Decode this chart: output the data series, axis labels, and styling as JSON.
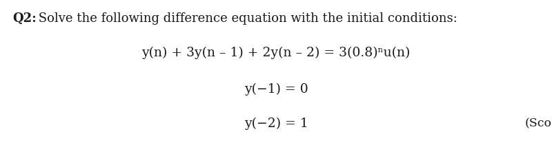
{
  "background_color": "#ffffff",
  "text_color": "#1a1a1a",
  "q2_bold": "Q2:",
  "title_rest": " Solve the following difference equation with the initial conditions:",
  "equation": "y(n) + 3y(n – 1) + 2y(n – 2) = 3(0.8)ⁿu(n)",
  "ic1": "y(−1) = 0",
  "ic2": "y(−2) = 1",
  "score": "(Sco",
  "title_fontsize": 13.0,
  "eq_fontsize": 13.5,
  "ic_fontsize": 13.5,
  "score_fontsize": 12.5,
  "fig_width": 8.0,
  "fig_height": 2.11,
  "dpi": 100
}
